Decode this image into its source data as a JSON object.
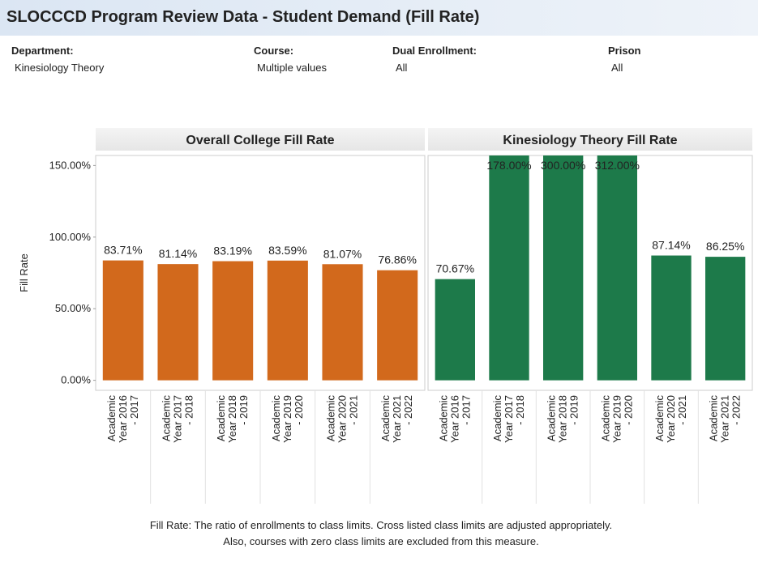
{
  "header": {
    "title": "SLOCCCD Program Review Data - Student Demand (Fill Rate)"
  },
  "filters": [
    {
      "label": "Department:",
      "value": "Kinesiology Theory"
    },
    {
      "label": "Course:",
      "value": "Multiple values"
    },
    {
      "label": "Dual Enrollment:",
      "value": "All"
    },
    {
      "label": "Prison",
      "value": "All"
    }
  ],
  "chart_data": [
    {
      "type": "bar",
      "title": "Overall College Fill Rate",
      "y_label": "Fill Rate",
      "categories": [
        "Academic Year 2016 - 2017",
        "Academic Year 2017 - 2018",
        "Academic Year 2018 - 2019",
        "Academic Year 2019 - 2020",
        "Academic Year 2020 - 2021",
        "Academic Year 2021 - 2022"
      ],
      "values": [
        83.71,
        81.14,
        83.19,
        83.59,
        81.07,
        76.86
      ],
      "value_labels": [
        "83.71%",
        "81.14%",
        "83.19%",
        "83.59%",
        "81.07%",
        "76.86%"
      ],
      "color": "#d2691c",
      "ylim": [
        -7,
        157
      ],
      "yticks": [
        {
          "value": 0,
          "label": "0.00%"
        },
        {
          "value": 50,
          "label": "50.00%"
        },
        {
          "value": 100,
          "label": "100.00%"
        },
        {
          "value": 150,
          "label": "150.00%"
        }
      ]
    },
    {
      "type": "bar",
      "title": "Kinesiology Theory Fill Rate",
      "categories": [
        "Academic Year 2016 - 2017",
        "Academic Year 2017 - 2018",
        "Academic Year 2018 - 2019",
        "Academic Year 2019 - 2020",
        "Academic Year 2020 - 2021",
        "Academic Year 2021 - 2022"
      ],
      "values": [
        70.67,
        178.0,
        300.0,
        312.0,
        87.14,
        86.25
      ],
      "value_labels": [
        "70.67%",
        "178.00%",
        "300.00%",
        "312.00%",
        "87.14%",
        "86.25%"
      ],
      "color": "#1d7a4a",
      "ylim": [
        -7,
        157
      ]
    }
  ],
  "footer": [
    "Fill Rate: The ratio of enrollments to class limits. Cross listed class limits are adjusted appropriately.",
    "Also, courses with zero class limits are excluded from this measure."
  ]
}
